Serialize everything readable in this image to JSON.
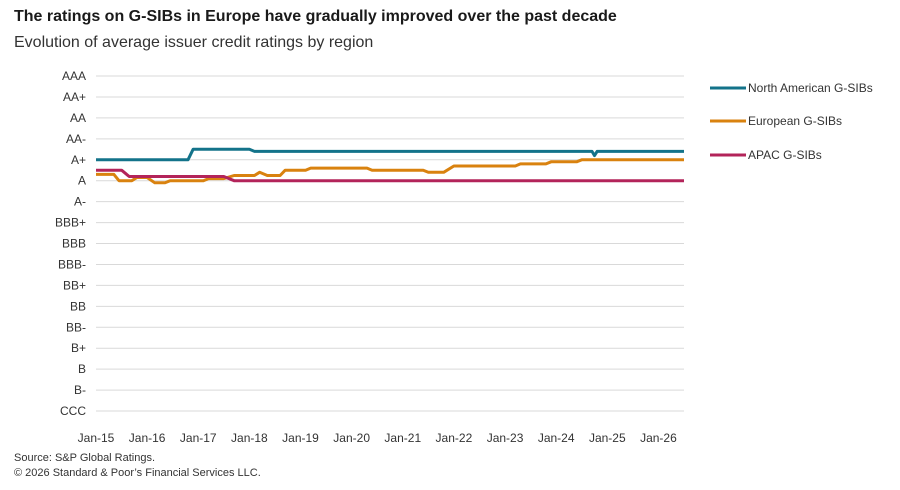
{
  "header": {
    "title": "The ratings on G-SIBs in Europe have gradually improved over the past decade",
    "subtitle": "Evolution of average issuer credit ratings by region"
  },
  "footer": {
    "source": "Source: S&P Global Ratings.",
    "copyright": "© 2026 Standard & Poor’s Financial Services LLC."
  },
  "colors": {
    "north_america": "#13738a",
    "europe": "#d9820f",
    "apac": "#b3245a",
    "grid": "#d9d9d9"
  },
  "chart_data": {
    "type": "line",
    "title": "The ratings on G-SIBs in Europe have gradually improved over the past decade",
    "subtitle": "Evolution of average issuer credit ratings by region",
    "y_categories": [
      "CCC",
      "B-",
      "B",
      "B+",
      "BB-",
      "BB",
      "BB+",
      "BBB-",
      "BBB",
      "BBB+",
      "A-",
      "A",
      "A+",
      "AA-",
      "AA",
      "AA+",
      "AAA"
    ],
    "x_ticks": [
      "Jan-15",
      "Jan-16",
      "Jan-17",
      "Jan-18",
      "Jan-19",
      "Jan-20",
      "Jan-21",
      "Jan-22",
      "Jan-23",
      "Jan-24",
      "Jan-25",
      "Jan-26"
    ],
    "x_range": [
      2015.0,
      2026.5
    ],
    "grid": true,
    "legend_position": "right",
    "series": [
      {
        "name": "North American G-SIBs",
        "color_key": "north_america",
        "points": [
          [
            2015.0,
            12.0
          ],
          [
            2016.8,
            12.0
          ],
          [
            2016.9,
            12.5
          ],
          [
            2018.0,
            12.5
          ],
          [
            2018.1,
            12.4
          ],
          [
            2024.7,
            12.4
          ],
          [
            2024.75,
            12.2
          ],
          [
            2024.8,
            12.4
          ],
          [
            2026.5,
            12.4
          ]
        ]
      },
      {
        "name": "European G-SIBs",
        "color_key": "europe",
        "points": [
          [
            2015.0,
            11.3
          ],
          [
            2015.35,
            11.3
          ],
          [
            2015.45,
            11.0
          ],
          [
            2015.7,
            11.0
          ],
          [
            2015.8,
            11.15
          ],
          [
            2016.0,
            11.15
          ],
          [
            2016.15,
            10.9
          ],
          [
            2016.35,
            10.9
          ],
          [
            2016.45,
            11.0
          ],
          [
            2017.1,
            11.0
          ],
          [
            2017.2,
            11.1
          ],
          [
            2017.5,
            11.1
          ],
          [
            2017.7,
            11.25
          ],
          [
            2018.1,
            11.25
          ],
          [
            2018.2,
            11.4
          ],
          [
            2018.35,
            11.25
          ],
          [
            2018.6,
            11.25
          ],
          [
            2018.7,
            11.5
          ],
          [
            2019.1,
            11.5
          ],
          [
            2019.2,
            11.6
          ],
          [
            2020.3,
            11.6
          ],
          [
            2020.4,
            11.5
          ],
          [
            2021.4,
            11.5
          ],
          [
            2021.5,
            11.4
          ],
          [
            2021.8,
            11.4
          ],
          [
            2022.0,
            11.7
          ],
          [
            2023.2,
            11.7
          ],
          [
            2023.3,
            11.8
          ],
          [
            2023.8,
            11.8
          ],
          [
            2023.9,
            11.9
          ],
          [
            2024.4,
            11.9
          ],
          [
            2024.5,
            12.0
          ],
          [
            2026.5,
            12.0
          ]
        ]
      },
      {
        "name": "APAC G-SIBs",
        "color_key": "apac",
        "points": [
          [
            2015.0,
            11.5
          ],
          [
            2015.5,
            11.5
          ],
          [
            2015.65,
            11.2
          ],
          [
            2016.5,
            11.2
          ],
          [
            2017.5,
            11.2
          ],
          [
            2017.7,
            11.0
          ],
          [
            2026.5,
            11.0
          ]
        ]
      }
    ]
  }
}
